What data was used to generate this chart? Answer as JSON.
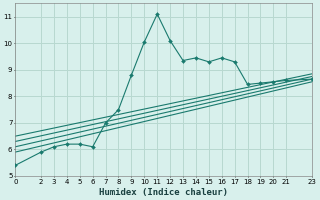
{
  "xlabel": "Humidex (Indice chaleur)",
  "bg_color": "#d8f0ec",
  "grid_color": "#b8d8d0",
  "line_color": "#1a7a6e",
  "xlim": [
    0,
    23
  ],
  "ylim": [
    5,
    11.5
  ],
  "yticks": [
    5,
    6,
    7,
    8,
    9,
    10,
    11
  ],
  "xticks": [
    0,
    2,
    3,
    4,
    5,
    6,
    7,
    8,
    9,
    10,
    11,
    12,
    13,
    14,
    15,
    16,
    17,
    18,
    19,
    20,
    21,
    23
  ],
  "series1_x": [
    0,
    2,
    3,
    4,
    5,
    6,
    7,
    8,
    9,
    10,
    11,
    12,
    13,
    14,
    15,
    16,
    17,
    18,
    19,
    20,
    21,
    23
  ],
  "series1_y": [
    5.4,
    5.9,
    6.1,
    6.2,
    6.2,
    6.1,
    7.0,
    7.5,
    8.8,
    10.05,
    11.1,
    10.1,
    9.35,
    9.45,
    9.3,
    9.45,
    9.3,
    8.45,
    8.5,
    8.55,
    8.6,
    8.65
  ],
  "straight_lines": [
    {
      "x0": 0,
      "y0": 5.9,
      "x1": 23,
      "y1": 8.55
    },
    {
      "x0": 0,
      "y0": 6.1,
      "x1": 23,
      "y1": 8.65
    },
    {
      "x0": 0,
      "y0": 6.3,
      "x1": 23,
      "y1": 8.75
    },
    {
      "x0": 0,
      "y0": 6.5,
      "x1": 23,
      "y1": 8.85
    }
  ]
}
